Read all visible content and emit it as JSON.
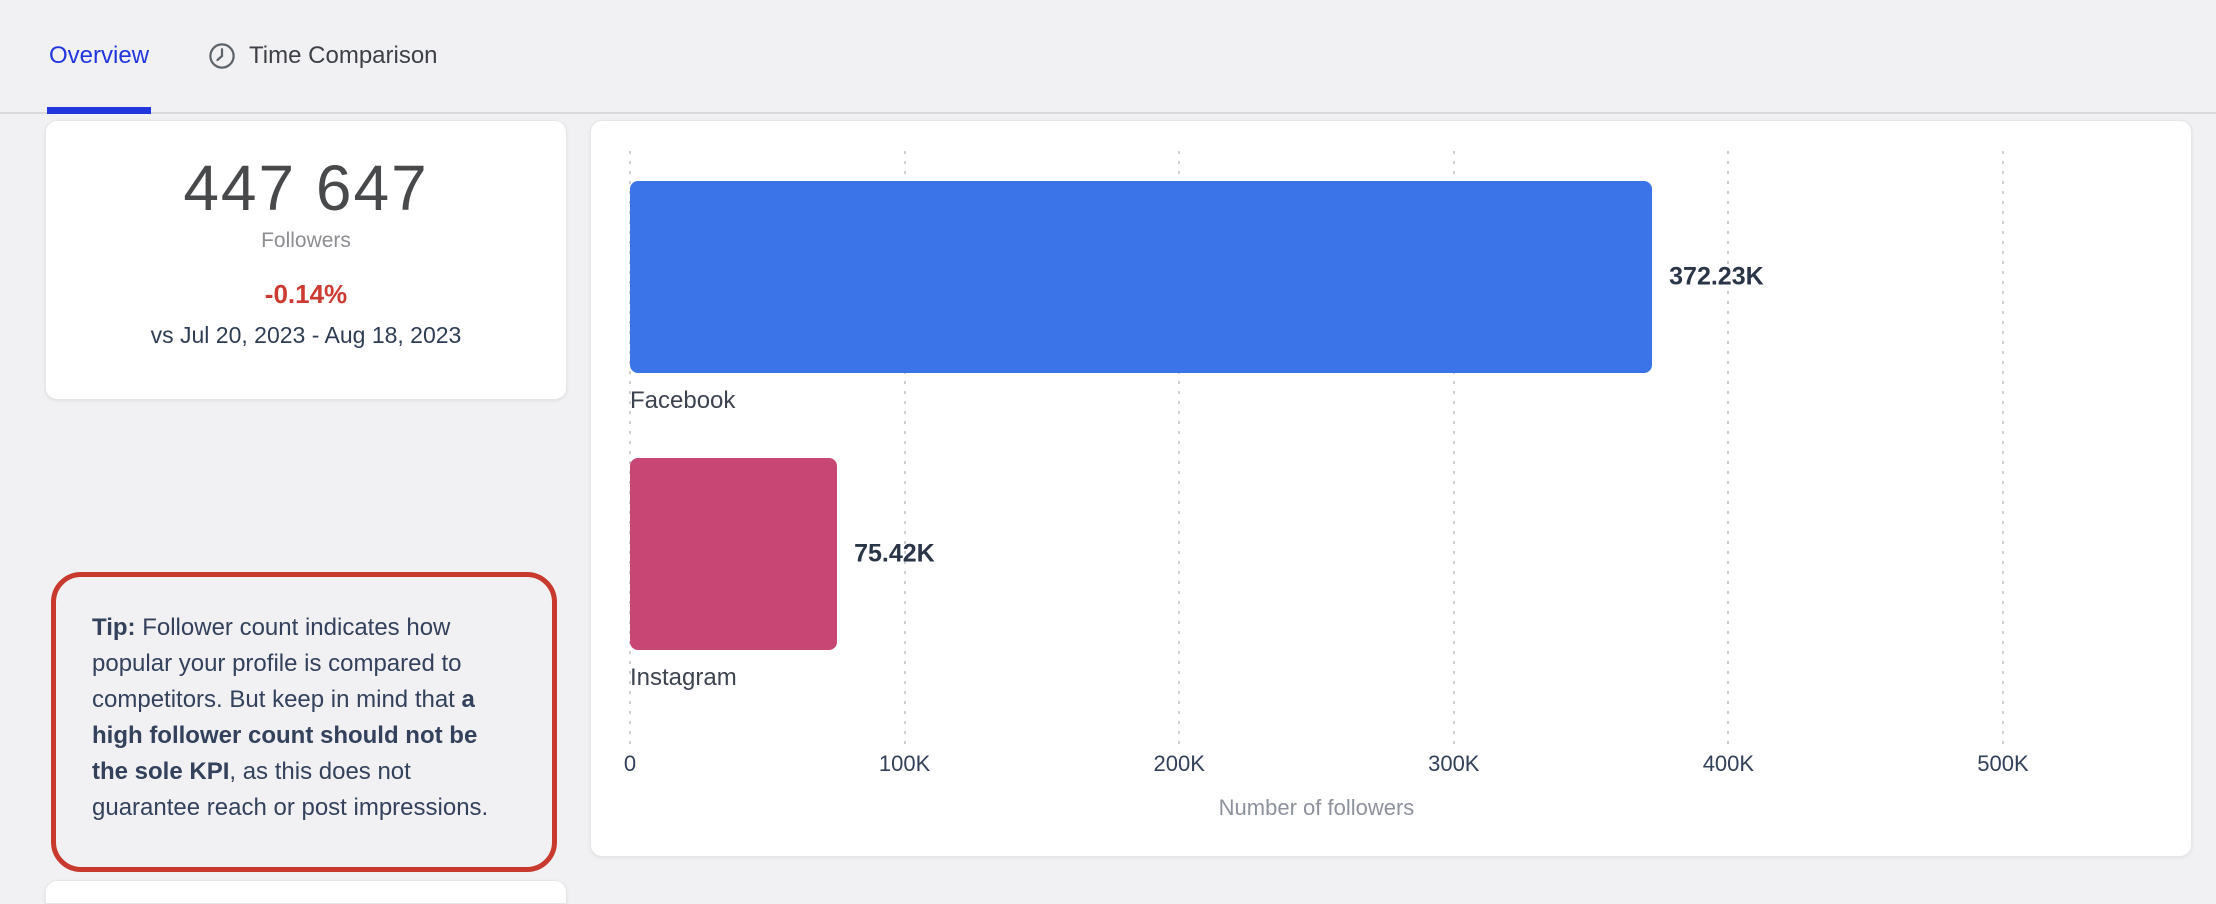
{
  "tabs": [
    {
      "label": "Overview",
      "active": true
    },
    {
      "label": "Time Comparison",
      "active": false,
      "icon": "clock-icon"
    }
  ],
  "kpi_card": {
    "value": "447 647",
    "label": "Followers",
    "change": "-0.14%",
    "change_direction": "negative",
    "comparison": "vs Jul 20, 2023 - Aug 18, 2023"
  },
  "tip": {
    "segments": [
      {
        "text": "Tip:",
        "bold": true
      },
      {
        "text": " Follower count indicates how popular your profile is compared to competitors. But keep in mind that ",
        "bold": false
      },
      {
        "text": "a high follower count should not be the sole KPI",
        "bold": true
      },
      {
        "text": ", as this does not guarantee reach or post impressions.",
        "bold": false
      }
    ]
  },
  "chart_data": {
    "type": "bar",
    "orientation": "horizontal",
    "categories": [
      "Facebook",
      "Instagram"
    ],
    "values": [
      372230,
      75420
    ],
    "value_labels": [
      "372.23K",
      "75.42K"
    ],
    "bar_colors": [
      "#3b74e8",
      "#c74673"
    ],
    "xlabel": "Number of followers",
    "xlim": [
      0,
      500000
    ],
    "x_ticks": [
      {
        "label": "0",
        "value": 0
      },
      {
        "label": "100K",
        "value": 100000
      },
      {
        "label": "200K",
        "value": 200000
      },
      {
        "label": "300K",
        "value": 300000
      },
      {
        "label": "400K",
        "value": 400000
      },
      {
        "label": "500K",
        "value": 500000
      }
    ],
    "grid": "vertical-dotted",
    "legend": "none"
  },
  "colors": {
    "accent_blue": "#2136df",
    "bar_blue": "#3b74e8",
    "bar_pink": "#c74673",
    "negative_red": "#cd3a32",
    "tip_border_red": "#c73a2d",
    "page_background": "#f1f1f3",
    "dark_text": "#33415c"
  }
}
